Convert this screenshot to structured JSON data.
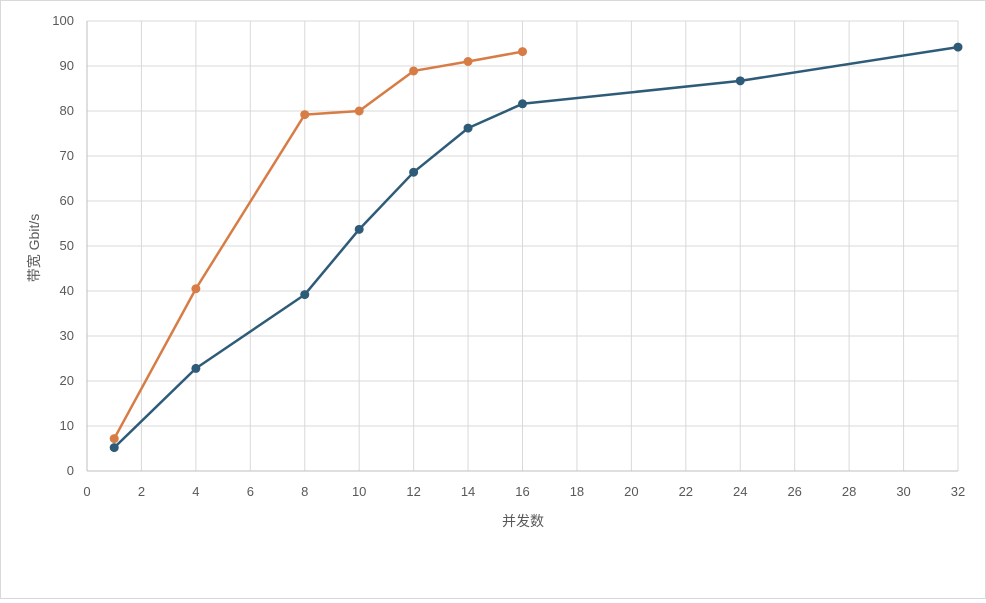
{
  "chart_data": {
    "type": "line",
    "title": "",
    "xlabel": "并发数",
    "ylabel": "带宽 Gbit/s",
    "xlim": [
      0,
      32
    ],
    "ylim": [
      0,
      100
    ],
    "x_ticks": [
      0,
      2,
      4,
      6,
      8,
      10,
      12,
      14,
      16,
      18,
      20,
      22,
      24,
      26,
      28,
      30,
      32
    ],
    "y_ticks": [
      0,
      10,
      20,
      30,
      40,
      50,
      60,
      70,
      80,
      90,
      100
    ],
    "grid": true,
    "legend": "none",
    "series": [
      {
        "color": "#2e5b78",
        "points": [
          [
            1,
            5.2
          ],
          [
            4,
            22.8
          ],
          [
            8,
            39.2
          ],
          [
            10,
            53.7
          ],
          [
            12,
            66.4
          ],
          [
            14,
            76.2
          ],
          [
            16,
            81.6
          ],
          [
            24,
            86.7
          ],
          [
            32,
            94.2
          ]
        ]
      },
      {
        "color": "#d87c45",
        "points": [
          [
            1,
            7.2
          ],
          [
            4,
            40.5
          ],
          [
            8,
            79.2
          ],
          [
            10,
            80.0
          ],
          [
            12,
            88.9
          ],
          [
            14,
            91.0
          ],
          [
            16,
            93.2
          ]
        ]
      }
    ]
  }
}
